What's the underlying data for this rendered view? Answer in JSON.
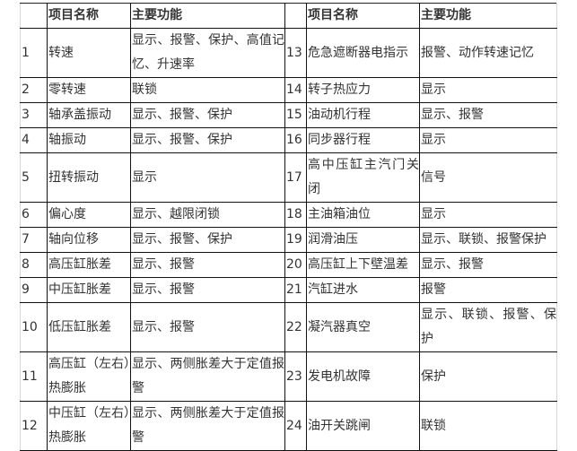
{
  "headers": [
    "",
    "项目名称",
    "主要功能",
    "",
    "项目名称",
    "主要功能"
  ],
  "rows": [
    {
      "n1": "1",
      "name1": "转速",
      "func1": "显示、报警、保护、高值记忆、升速率",
      "n2": "13",
      "name2": "危急遮断器电指示",
      "func2": "报警、动作转速记忆"
    },
    {
      "n1": "2",
      "name1": "零转速",
      "func1": "联锁",
      "n2": "14",
      "name2": "转子热应力",
      "func2": "显示"
    },
    {
      "n1": "3",
      "name1": "轴承盖振动",
      "func1": "显示、报警、保护",
      "n2": "15",
      "name2": "油动机行程",
      "func2": "显示、报警"
    },
    {
      "n1": "4",
      "name1": "轴振动",
      "func1": "显示、报警、保护",
      "n2": "16",
      "name2": "同步器行程",
      "func2": "显示"
    },
    {
      "n1": "5",
      "name1": "扭转振动",
      "func1": "显示",
      "n2": "17",
      "name2": "高中压缸主汽门关闭",
      "func2": "信号"
    },
    {
      "n1": "6",
      "name1": "偏心度",
      "func1": "显示、越限闭锁",
      "n2": "18",
      "name2": "主油箱油位",
      "func2": "显示"
    },
    {
      "n1": "7",
      "name1": "轴向位移",
      "func1": "显示、报警、保护",
      "n2": "19",
      "name2": "润滑油压",
      "func2": "显示、联锁、报警保护"
    },
    {
      "n1": "8",
      "name1": "高压缸胀差",
      "func1": "显示、报警",
      "n2": "20",
      "name2": "高压缸上下壁温差",
      "func2": "显示、报警"
    },
    {
      "n1": "9",
      "name1": "中压缸胀差",
      "func1": "显示、报警",
      "n2": "21",
      "name2": "汽缸进水",
      "func2": "报警"
    },
    {
      "n1": "10",
      "name1": "低压缸胀差",
      "func1": "显示、报警",
      "n2": "22",
      "name2": "凝汽器真空",
      "func2": "显示、联锁、报警、保护"
    },
    {
      "n1": "11",
      "name1": "高压缸（左右）热膨胀",
      "func1": "显示、两侧胀差大于定值报警",
      "n2": "23",
      "name2": "发电机故障",
      "func2": "保护"
    },
    {
      "n1": "12",
      "name1": "中压缸（左右）热膨胀",
      "func1": "显示、两侧胀差大于定值报警",
      "n2": "24",
      "name2": "油开关跳闸",
      "func2": "联锁"
    }
  ]
}
